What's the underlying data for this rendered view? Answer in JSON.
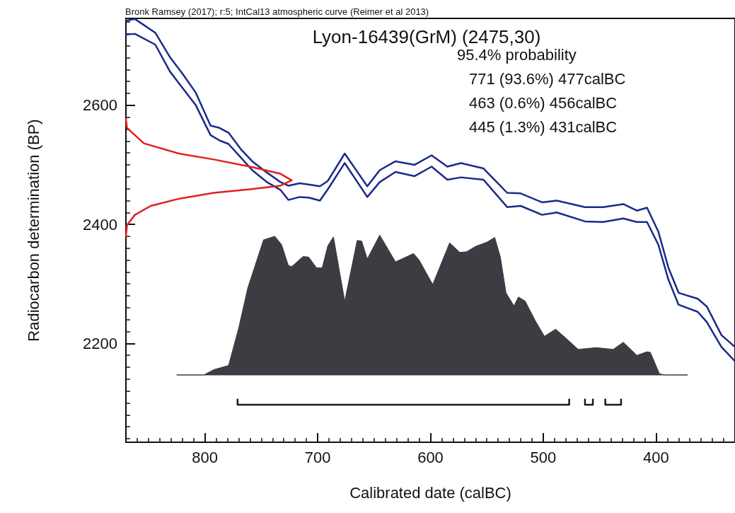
{
  "chart_data": {
    "type": "line",
    "title": "Lyon-16439(GrM) (2475,30)",
    "subtitle": "Bronk Ramsey (2017); r:5; IntCal13 atmospheric curve (Reimer et al 2013)",
    "xlabel": "Calibrated date (calBC)",
    "ylabel": "Radiocarbon determination (BP)",
    "annotations": [
      "95.4% probability",
      "771 (93.6%) 477calBC",
      "463 (0.6%) 456calBC",
      "445 (1.3%) 431calBC"
    ],
    "xlim": [
      870,
      330
    ],
    "ylim": [
      2034,
      2746
    ],
    "xticks": [
      {
        "value": 860,
        "label": null
      },
      {
        "value": 850,
        "label": null
      },
      {
        "value": 840,
        "label": null
      },
      {
        "value": 830,
        "label": null
      },
      {
        "value": 820,
        "label": null
      },
      {
        "value": 810,
        "label": null
      },
      800,
      {
        "value": 790,
        "label": null
      },
      {
        "value": 780,
        "label": null
      },
      {
        "value": 770,
        "label": null
      },
      {
        "value": 760,
        "label": null
      },
      {
        "value": 750,
        "label": null
      },
      {
        "value": 740,
        "label": null
      },
      {
        "value": 730,
        "label": null
      },
      {
        "value": 720,
        "label": null
      },
      {
        "value": 710,
        "label": null
      },
      700,
      {
        "value": 690,
        "label": null
      },
      {
        "value": 680,
        "label": null
      },
      {
        "value": 670,
        "label": null
      },
      {
        "value": 660,
        "label": null
      },
      {
        "value": 650,
        "label": null
      },
      {
        "value": 640,
        "label": null
      },
      {
        "value": 630,
        "label": null
      },
      {
        "value": 620,
        "label": null
      },
      {
        "value": 610,
        "label": null
      },
      600,
      {
        "value": 590,
        "label": null
      },
      {
        "value": 580,
        "label": null
      },
      {
        "value": 570,
        "label": null
      },
      {
        "value": 560,
        "label": null
      },
      {
        "value": 550,
        "label": null
      },
      {
        "value": 540,
        "label": null
      },
      {
        "value": 530,
        "label": null
      },
      {
        "value": 520,
        "label": null
      },
      {
        "value": 510,
        "label": null
      },
      500,
      {
        "value": 490,
        "label": null
      },
      {
        "value": 480,
        "label": null
      },
      {
        "value": 470,
        "label": null
      },
      {
        "value": 460,
        "label": null
      },
      {
        "value": 450,
        "label": null
      },
      {
        "value": 440,
        "label": null
      },
      {
        "value": 430,
        "label": null
      },
      {
        "value": 420,
        "label": null
      },
      {
        "value": 410,
        "label": null
      },
      400,
      {
        "value": 390,
        "label": null
      },
      {
        "value": 380,
        "label": null
      },
      {
        "value": 370,
        "label": null
      },
      {
        "value": 360,
        "label": null
      },
      {
        "value": 350,
        "label": null
      },
      {
        "value": 340,
        "label": null
      }
    ],
    "yticks": [
      {
        "value": 2040,
        "label": null
      },
      {
        "value": 2060,
        "label": null
      },
      {
        "value": 2080,
        "label": null
      },
      {
        "value": 2100,
        "label": null
      },
      {
        "value": 2120,
        "label": null
      },
      {
        "value": 2140,
        "label": null
      },
      {
        "value": 2160,
        "label": null
      },
      {
        "value": 2180,
        "label": null
      },
      2200,
      {
        "value": 2220,
        "label": null
      },
      {
        "value": 2240,
        "label": null
      },
      {
        "value": 2260,
        "label": null
      },
      {
        "value": 2280,
        "label": null
      },
      {
        "value": 2300,
        "label": null
      },
      {
        "value": 2320,
        "label": null
      },
      {
        "value": 2340,
        "label": null
      },
      {
        "value": 2360,
        "label": null
      },
      {
        "value": 2380,
        "label": null
      },
      2400,
      {
        "value": 2420,
        "label": null
      },
      {
        "value": 2440,
        "label": null
      },
      {
        "value": 2460,
        "label": null
      },
      {
        "value": 2480,
        "label": null
      },
      {
        "value": 2500,
        "label": null
      },
      {
        "value": 2520,
        "label": null
      },
      {
        "value": 2540,
        "label": null
      },
      {
        "value": 2560,
        "label": null
      },
      {
        "value": 2580,
        "label": null
      },
      2600,
      {
        "value": 2620,
        "label": null
      },
      {
        "value": 2640,
        "label": null
      },
      {
        "value": 2660,
        "label": null
      },
      {
        "value": 2680,
        "label": null
      },
      {
        "value": 2700,
        "label": null
      },
      {
        "value": 2720,
        "label": null
      },
      {
        "value": 2740,
        "label": null
      }
    ],
    "grid": false,
    "marker": "none",
    "line_style": "solid",
    "series": [
      {
        "color": "#1a2a8c",
        "x": [
          870,
          862,
          844,
          831,
          819,
          808,
          795,
          787,
          779,
          768,
          758,
          745,
          733,
          726,
          716,
          708,
          698,
          691,
          676,
          656,
          645,
          631,
          614,
          599,
          585,
          573,
          553,
          532,
          520,
          501,
          488,
          463,
          447,
          429,
          417,
          408,
          398,
          389,
          380,
          363,
          355,
          342,
          330
        ],
        "values": [
          2742,
          2745,
          2722,
          2681,
          2651,
          2621,
          2566,
          2562,
          2554,
          2526,
          2506,
          2487,
          2471,
          2465,
          2469,
          2467,
          2464,
          2473,
          2519,
          2464,
          2491,
          2506,
          2500,
          2516,
          2497,
          2503,
          2494,
          2453,
          2452,
          2437,
          2440,
          2429,
          2429,
          2434,
          2423,
          2428,
          2388,
          2327,
          2285,
          2275,
          2262,
          2214,
          2194
        ]
      },
      {
        "color": "#1a2a8c",
        "x": [
          870,
          862,
          844,
          831,
          819,
          808,
          795,
          787,
          779,
          768,
          758,
          745,
          733,
          726,
          716,
          708,
          698,
          691,
          676,
          656,
          645,
          631,
          614,
          599,
          585,
          573,
          553,
          532,
          520,
          501,
          488,
          463,
          447,
          429,
          417,
          408,
          398,
          389,
          380,
          363,
          355,
          342,
          330
        ],
        "values": [
          2719,
          2720,
          2702,
          2657,
          2627,
          2600,
          2550,
          2541,
          2535,
          2512,
          2491,
          2471,
          2458,
          2441,
          2446,
          2445,
          2440,
          2459,
          2503,
          2446,
          2471,
          2488,
          2481,
          2497,
          2475,
          2479,
          2475,
          2429,
          2431,
          2416,
          2420,
          2405,
          2404,
          2410,
          2404,
          2404,
          2366,
          2307,
          2265,
          2253,
          2236,
          2194,
          2170
        ]
      },
      {
        "color": "#e02020",
        "x": [
          870,
          869,
          854,
          823,
          792,
          760,
          733,
          723,
          733,
          760,
          792,
          823,
          848,
          862,
          869,
          870
        ],
        "values": [
          2577,
          2562,
          2536,
          2519,
          2509,
          2497,
          2485,
          2474,
          2465,
          2459,
          2453,
          2443,
          2431,
          2416,
          2399,
          2380
        ]
      },
      {
        "type": "area",
        "color": "#3c3c42",
        "x": [
          825,
          801,
          792,
          779,
          770,
          762,
          748,
          738,
          732,
          726,
          723,
          713,
          708,
          701,
          696,
          691,
          686,
          676,
          665,
          661,
          656,
          645,
          631,
          615,
          610,
          598,
          583,
          574,
          568,
          560,
          550,
          543,
          538,
          533,
          526,
          522,
          516,
          507,
          499,
          489,
          480,
          469,
          453,
          438,
          429,
          417,
          408,
          405,
          397,
          392,
          372
        ],
        "values": [
          2147,
          2147,
          2156,
          2163,
          2226,
          2293,
          2374,
          2380,
          2366,
          2331,
          2329,
          2346,
          2345,
          2327,
          2327,
          2364,
          2379,
          2271,
          2373,
          2372,
          2342,
          2382,
          2337,
          2351,
          2340,
          2299,
          2369,
          2353,
          2354,
          2363,
          2370,
          2378,
          2345,
          2285,
          2263,
          2278,
          2271,
          2238,
          2212,
          2224,
          2209,
          2190,
          2193,
          2190,
          2202,
          2180,
          2186,
          2185,
          2149,
          2147,
          2147
        ]
      },
      {
        "color": "#1a1a1a",
        "x": [
          771,
          771,
          477,
          477,
          null,
          463,
          463,
          456,
          456,
          null,
          445,
          445,
          431,
          431
        ],
        "values": [
          2106,
          2097,
          2097,
          2106,
          null,
          2106,
          2097,
          2097,
          2106,
          null,
          2106,
          2097,
          2097,
          2106
        ]
      }
    ]
  }
}
